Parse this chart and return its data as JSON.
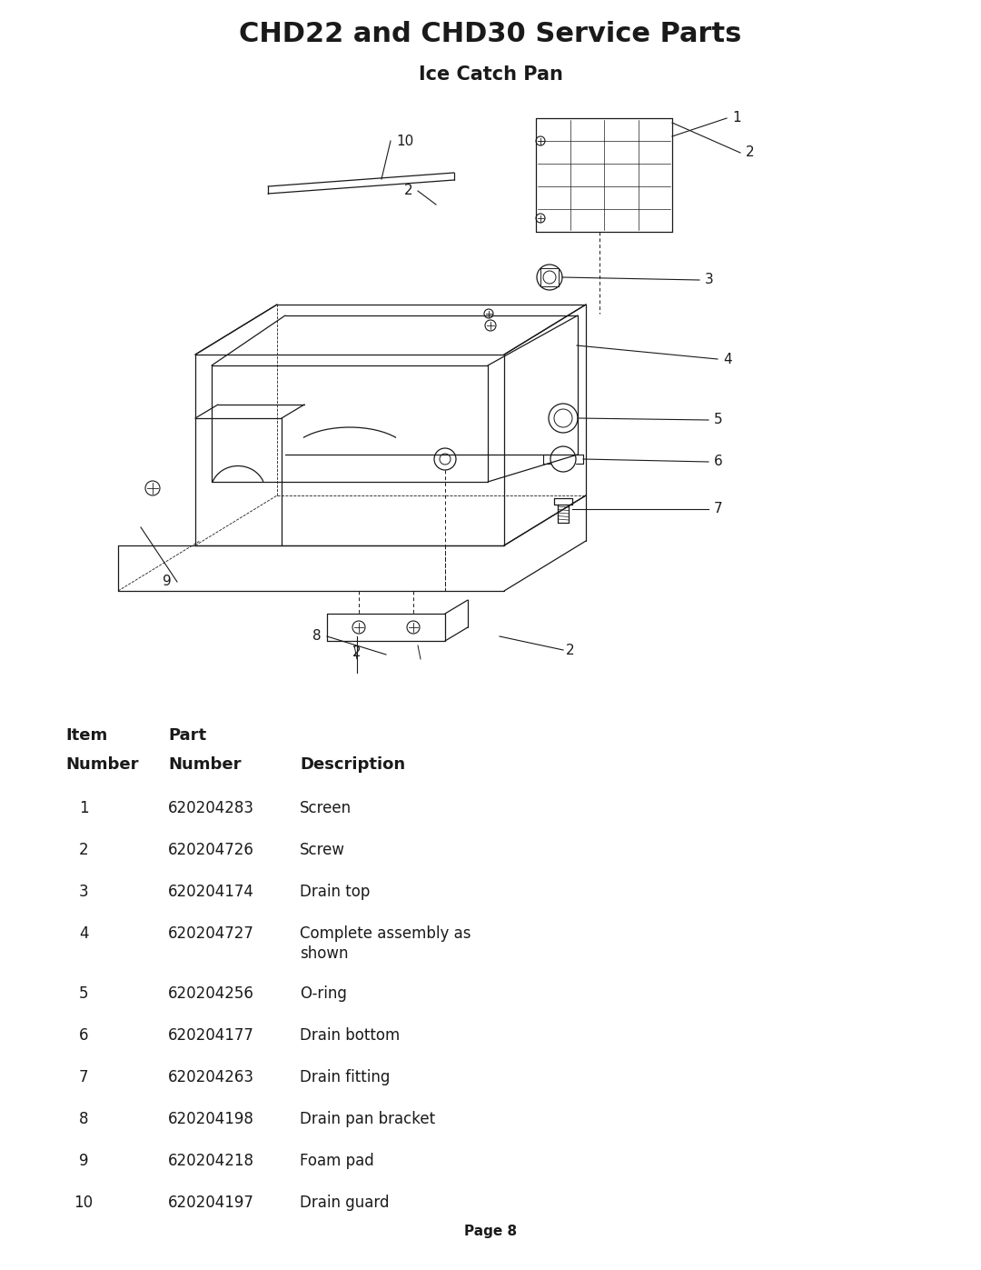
{
  "title": "CHD22 and CHD30 Service Parts",
  "subtitle": "Ice Catch Pan",
  "page": "Page 8",
  "bg_color": "#ffffff",
  "title_fontsize": 22,
  "subtitle_fontsize": 15,
  "parts": [
    {
      "item": "1",
      "part": "620204283",
      "desc": "Screen"
    },
    {
      "item": "2",
      "part": "620204726",
      "desc": "Screw"
    },
    {
      "item": "3",
      "part": "620204174",
      "desc": "Drain top"
    },
    {
      "item": "4",
      "part": "620204727",
      "desc": "Complete assembly as shown"
    },
    {
      "item": "5",
      "part": "620204256",
      "desc": "O-ring"
    },
    {
      "item": "6",
      "part": "620204177",
      "desc": "Drain bottom"
    },
    {
      "item": "7",
      "part": "620204263",
      "desc": "Drain fitting"
    },
    {
      "item": "8",
      "part": "620204198",
      "desc": "Drain pan bracket"
    },
    {
      "item": "9",
      "part": "620204218",
      "desc": "Foam pad"
    },
    {
      "item": "10",
      "part": "620204197",
      "desc": "Drain guard"
    }
  ],
  "dark": "#1a1a1a"
}
